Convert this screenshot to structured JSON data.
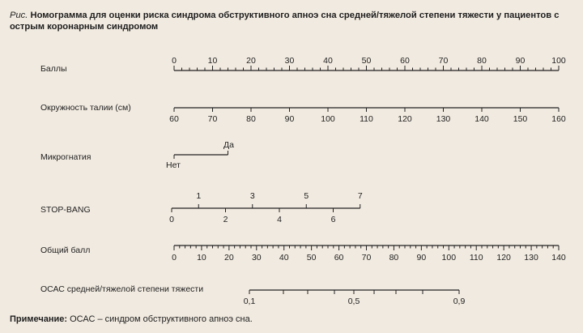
{
  "caption": {
    "prefix": "Рис.",
    "title": "Номограмма для оценки риска синдрома обструктивного апноэ сна средней/тяжелой степени тяжести у пациентов с острым коронарным синдромом"
  },
  "note": {
    "label": "Примечание:",
    "text": "ОСАС – синдром обструктивного апноэ сна."
  },
  "chart_data": {
    "type": "nomogram",
    "scales": [
      {
        "id": "points",
        "label": "Баллы",
        "min": 0,
        "max": 100,
        "major_ticks": [
          0,
          10,
          20,
          30,
          40,
          50,
          60,
          70,
          80,
          90,
          100
        ],
        "minor_step": 2,
        "labels_above": [
          "0",
          "10",
          "20",
          "30",
          "40",
          "50",
          "60",
          "70",
          "80",
          "90",
          "100"
        ]
      },
      {
        "id": "waist",
        "label": "Окружность талии (см)",
        "min": 60,
        "max": 160,
        "major_ticks": [
          60,
          70,
          80,
          90,
          100,
          110,
          120,
          130,
          140,
          150,
          160
        ],
        "labels_below": [
          "60",
          "70",
          "80",
          "90",
          "100",
          "110",
          "120",
          "130",
          "140",
          "150",
          "160"
        ]
      },
      {
        "id": "micrognathia",
        "label": "Микрогнатия",
        "categories": [
          "Нет",
          "Да"
        ],
        "points_value": [
          0,
          14
        ],
        "label_above": "Да",
        "label_below": "Нет"
      },
      {
        "id": "stopbang",
        "label": "STOP-BANG",
        "min": 0,
        "max": 7,
        "points_range": [
          0,
          49
        ],
        "labels_above": [
          "1",
          "3",
          "5",
          "7"
        ],
        "labels_below": [
          "0",
          "2",
          "4",
          "6"
        ]
      },
      {
        "id": "total",
        "label": "Общий балл",
        "min": 0,
        "max": 140,
        "major_ticks": [
          0,
          10,
          20,
          30,
          40,
          50,
          60,
          70,
          80,
          90,
          100,
          110,
          120,
          130,
          140
        ],
        "minor_step": 2,
        "labels_below": [
          "0",
          "10",
          "20",
          "30",
          "40",
          "50",
          "60",
          "70",
          "80",
          "90",
          "100",
          "110",
          "120",
          "130",
          "140"
        ]
      },
      {
        "id": "risk",
        "label": "ОСАС средней/тяжелой степени тяжести",
        "ticks": [
          0.1,
          0.2,
          0.3,
          0.4,
          0.5,
          0.6,
          0.7,
          0.8,
          0.9
        ],
        "labels_below": [
          "0,1",
          "0,5",
          "0,9"
        ],
        "labeled_values": [
          0.1,
          0.5,
          0.9
        ]
      }
    ]
  }
}
